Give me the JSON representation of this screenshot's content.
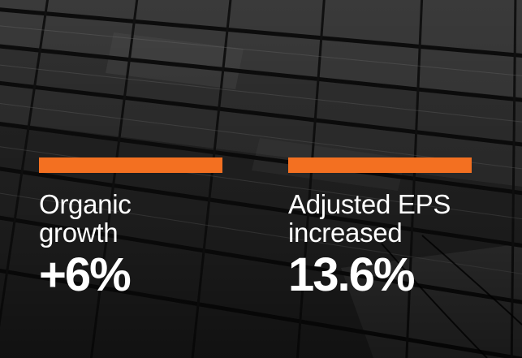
{
  "stats": [
    {
      "label_line1": "Organic",
      "label_line2": "growth",
      "value": "+6%"
    },
    {
      "label_line1": "Adjusted EPS",
      "label_line2": "increased",
      "value": "13.6%"
    }
  ],
  "colors": {
    "accent": "#f37021",
    "text": "#ffffff",
    "background": "#2a2a2a"
  }
}
